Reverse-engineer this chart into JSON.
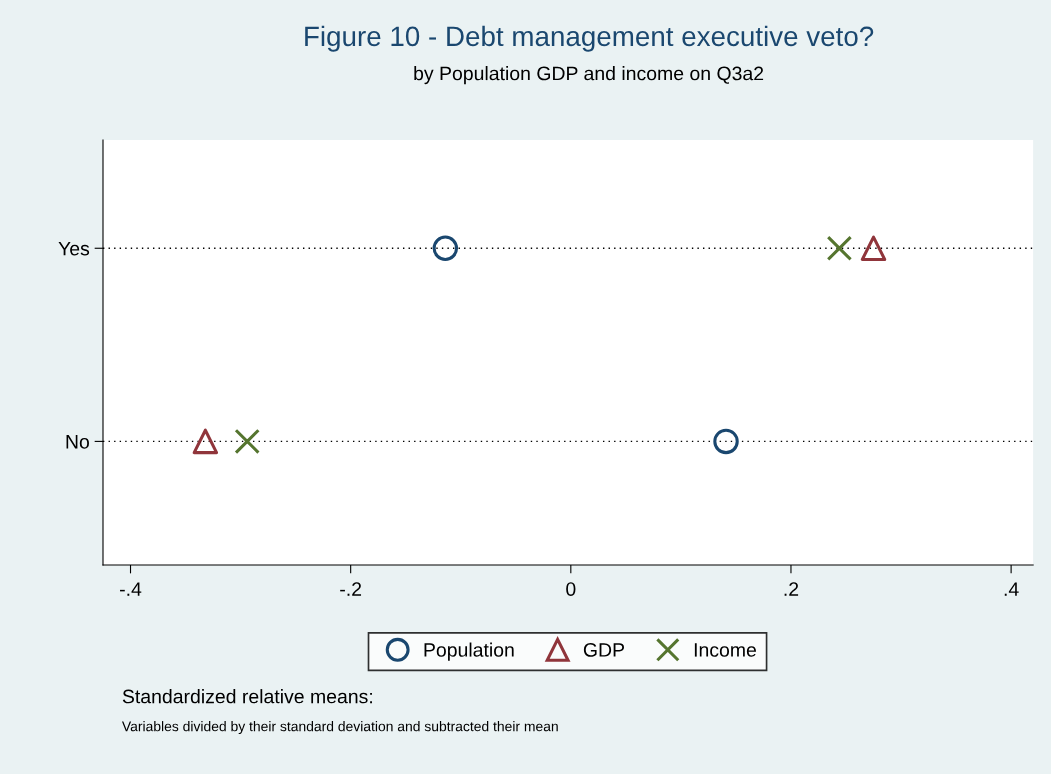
{
  "chart_data": {
    "type": "scatter",
    "orientation": "horizontal",
    "title": "Figure 10 - Debt management executive veto?",
    "subtitle": "by Population GDP and income on Q3a2",
    "categories": [
      "Yes",
      "No"
    ],
    "series": [
      {
        "name": "Population",
        "color": "#1a476f",
        "marker": "circle",
        "values": [
          -0.114,
          0.141
        ]
      },
      {
        "name": "GDP",
        "color": "#90353b",
        "marker": "triangle",
        "values": [
          0.275,
          -0.332
        ]
      },
      {
        "name": "Income",
        "color": "#55752f",
        "marker": "cross",
        "values": [
          0.244,
          -0.294
        ]
      }
    ],
    "xlim": [
      -0.425,
      0.42
    ],
    "xticks": [
      {
        "value": -0.4,
        "label": "-.4"
      },
      {
        "value": -0.2,
        "label": "-.2"
      },
      0,
      {
        "value": 0.2,
        "label": ".2"
      },
      {
        "value": 0.4,
        "label": ".4"
      }
    ],
    "grid": "y",
    "legend": "bottom",
    "annotations": [
      "Standardized relative means:",
      "Variables divided by their standard deviation and subtracted their mean"
    ]
  }
}
